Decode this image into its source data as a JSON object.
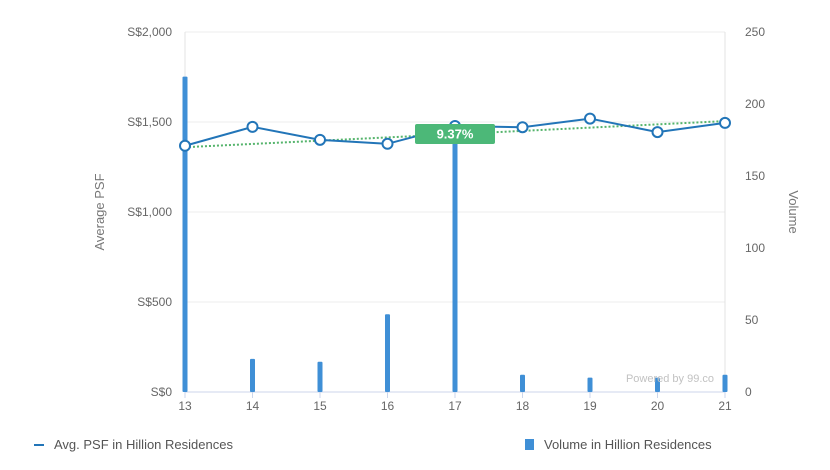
{
  "chart_data": {
    "type": "bar+line",
    "categories": [
      "13",
      "14",
      "15",
      "16",
      "17",
      "18",
      "19",
      "20",
      "21"
    ],
    "series": [
      {
        "name": "Avg. PSF in Hillion Residences",
        "type": "line",
        "axis": "left",
        "values": [
          1368,
          1473,
          1401,
          1379,
          1478,
          1471,
          1519,
          1444,
          1495
        ]
      },
      {
        "name": "Volume in Hillion Residences",
        "type": "bar",
        "axis": "right",
        "values": [
          219,
          23,
          21,
          54,
          183,
          12,
          10,
          10,
          12
        ]
      }
    ],
    "trendline": {
      "start": 1360,
      "end": 1505,
      "label": "9.37%"
    },
    "y_left": {
      "label": "Average PSF",
      "ticks": [
        "S$0",
        "S$500",
        "S$1,000",
        "S$1,500",
        "S$2,000"
      ],
      "ylim": [
        0,
        2000
      ]
    },
    "y_right": {
      "label": "Volume",
      "ticks": [
        "0",
        "50",
        "100",
        "150",
        "200",
        "250"
      ],
      "ylim": [
        0,
        250
      ]
    },
    "grid": true,
    "legend_placement": "bottom"
  },
  "watermark": "Powered by 99.co",
  "legend": {
    "line_label": "Avg. PSF in Hillion Residences",
    "bar_label": "Volume in Hillion Residences"
  },
  "colors": {
    "line": "#2275b8",
    "bar": "#3f8fd6",
    "trend": "#55b46c",
    "badge": "#4cb878",
    "grid": "#ececec",
    "tick": "#666666"
  }
}
